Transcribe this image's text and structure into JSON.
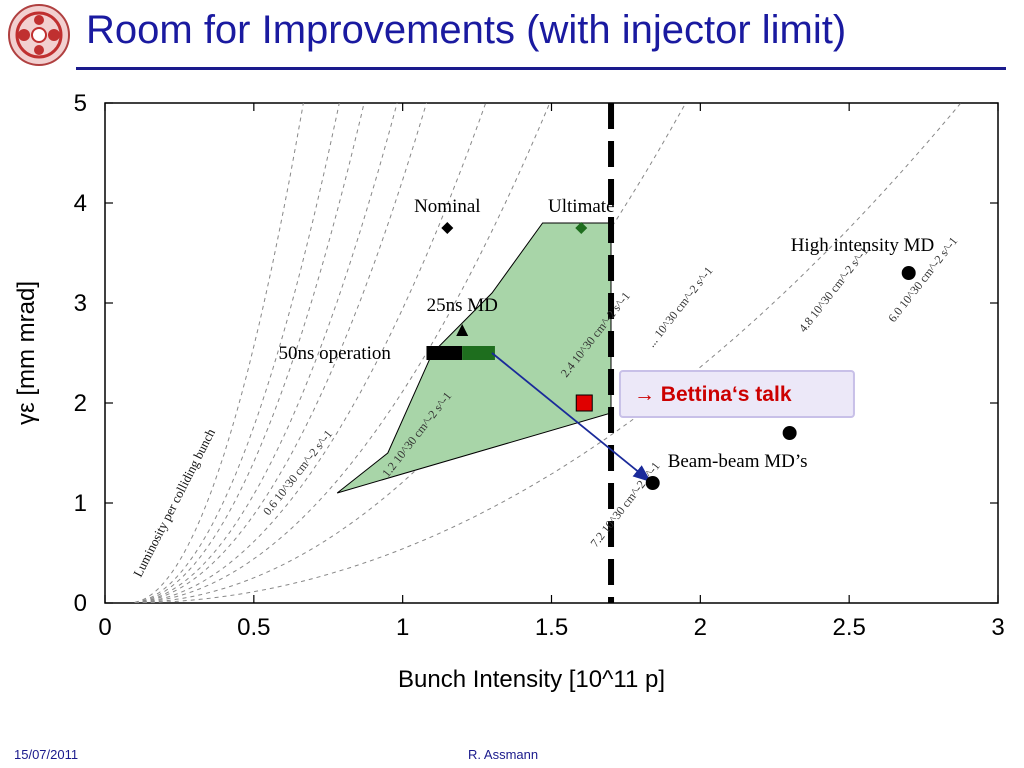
{
  "slide": {
    "title": "Room for Improvements (with injector limit)",
    "footer_date": "15/07/2011",
    "footer_author": "R. Assmann",
    "logo_icon": "accelerator-logo-icon"
  },
  "colors": {
    "title": "#1a1aa0",
    "accent": "#cc0000",
    "region_fill": "#a8d5a8",
    "arrow": "#1a2a9a",
    "grid_lines": "#888888"
  },
  "chart_data": {
    "type": "scatter",
    "xlabel": "Bunch Intensity [10^11 p]",
    "ylabel": "γε [mm mrad]",
    "xlim": [
      0,
      3
    ],
    "ylim": [
      0,
      5
    ],
    "xticks": [
      "0",
      "0.5",
      "1",
      "1.5",
      "2",
      "2.5",
      "3"
    ],
    "yticks": [
      "0",
      "1",
      "2",
      "3",
      "4",
      "5"
    ],
    "grid": false,
    "injector_limit_x": 1.7,
    "feasible_region": {
      "polygon": [
        [
          0.78,
          1.1
        ],
        [
          0.95,
          1.5
        ],
        [
          1.1,
          2.5
        ],
        [
          1.3,
          3.1
        ],
        [
          1.47,
          3.8
        ],
        [
          1.7,
          3.8
        ],
        [
          1.7,
          1.9
        ]
      ]
    },
    "points": [
      {
        "label": "Nominal",
        "x": 1.15,
        "y": 3.75,
        "marker": "diamond",
        "color": "#000000"
      },
      {
        "label": "Ultimate",
        "x": 1.6,
        "y": 3.75,
        "marker": "diamond",
        "color": "#1e6e1e"
      },
      {
        "label": "25ns MD",
        "x": 1.2,
        "y": 2.72,
        "marker": "triangle",
        "color": "#000000"
      },
      {
        "label": "High intensity MD",
        "x": 2.7,
        "y": 3.3,
        "marker": "circle",
        "color": "#000000"
      },
      {
        "label": "",
        "x": 2.3,
        "y": 1.7,
        "marker": "circle",
        "color": "#000000"
      },
      {
        "label": "Beam-beam MD’s",
        "x": 1.84,
        "y": 1.2,
        "marker": "circle",
        "color": "#000000"
      },
      {
        "label": "",
        "x": 1.61,
        "y": 2.0,
        "marker": "square",
        "color": "#e00000"
      }
    ],
    "operation_band": {
      "label": "50ns operation",
      "x": [
        1.08,
        1.31
      ],
      "y": 2.5
    },
    "luminosity_lines": [
      {
        "k": 12.5,
        "label": "0.6 10^30 cm^-2 s^-1",
        "label_pos": [
          0.55,
          0.87
        ]
      },
      {
        "k": 5.6,
        "label": "1.2 10^30 cm^-2 s^-1",
        "label_pos": [
          0.95,
          1.25
        ]
      },
      {
        "k": 3.2,
        "label": "",
        "label_pos": null
      },
      {
        "k": 2.3,
        "label": "2.4 10^30 cm^-2 s^-1",
        "label_pos": [
          1.55,
          2.25
        ]
      },
      {
        "k": 1.6,
        "label": "",
        "label_pos": null
      },
      {
        "k": 1.3,
        "label": "... 10^30 cm^-2 s^-1",
        "label_pos": [
          1.84,
          2.55
        ]
      },
      {
        "k": 1.0,
        "label": "4.8 10^30 cm^-2 s^-1",
        "label_pos": [
          2.35,
          2.7
        ]
      },
      {
        "k": 0.8,
        "label": "6.0 10^30 cm^-2 s^-1",
        "label_pos": [
          2.65,
          2.8
        ]
      },
      {
        "k": 0.55,
        "label": "7.2 10^30 cm^-2 s^-1",
        "label_pos": [
          1.65,
          0.55
        ]
      }
    ],
    "luminosity_axis_label": "Luminosity per colliding bunch",
    "annotations": [
      {
        "text": "→ Bettina‘s talk",
        "x": 1.73,
        "y": 2.12,
        "style": "callout"
      }
    ],
    "arrow": {
      "from": [
        1.3,
        2.5
      ],
      "to": [
        1.83,
        1.22
      ]
    }
  }
}
